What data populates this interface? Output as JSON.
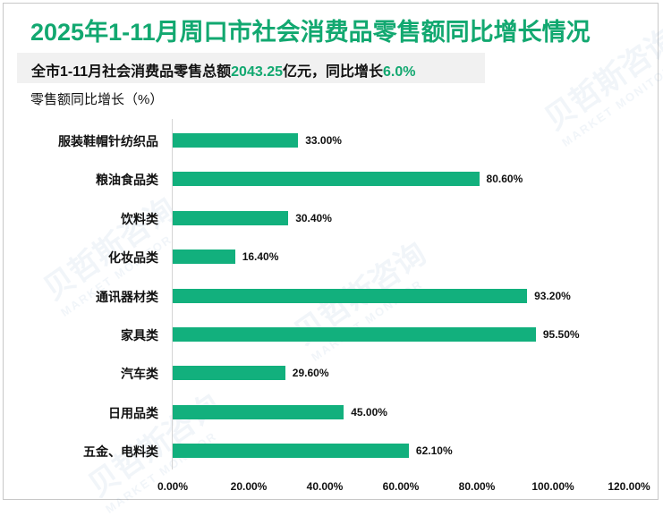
{
  "header": {
    "title": "2025年1-11月周口市社会消费品零售额同比增长情况"
  },
  "summary": {
    "prefix": "全市1-11月社会消费品零售总额",
    "total_value": "2043.25",
    "middle": "亿元，同比增长",
    "growth_value": "6.0%"
  },
  "unit_label": "零售额同比增长（%）",
  "watermark": {
    "cn": "贝哲斯咨询",
    "en": "MARKET MONITOR"
  },
  "colors": {
    "accent": "#12a870",
    "bar": "#12b07d",
    "summary_bg": "#f1f1f1"
  },
  "chart_data": {
    "type": "bar",
    "orientation": "horizontal",
    "title": "2025年1-11月周口市社会消费品零售额同比增长情况",
    "subtitle": "全市1-11月社会消费品零售总额2043.25亿元，同比增长6.0%",
    "xlabel": "",
    "ylabel": "零售额同比增长（%）",
    "categories": [
      "服装鞋帽针纺织品",
      "粮油食品类",
      "饮料类",
      "化妆品类",
      "通讯器材类",
      "家具类",
      "汽车类",
      "日用品类",
      "五金、电料类"
    ],
    "values": [
      33.0,
      80.6,
      30.4,
      16.4,
      93.2,
      95.5,
      29.6,
      45.0,
      62.1
    ],
    "value_labels": [
      "33.00%",
      "80.60%",
      "30.40%",
      "16.40%",
      "93.20%",
      "95.50%",
      "29.60%",
      "45.00%",
      "62.10%"
    ],
    "xlim": [
      0,
      120
    ],
    "x_ticks": [
      "0.00%",
      "20.00%",
      "40.00%",
      "60.00%",
      "80.00%",
      "100.00%",
      "120.00%"
    ],
    "grid": false,
    "legend": null
  }
}
